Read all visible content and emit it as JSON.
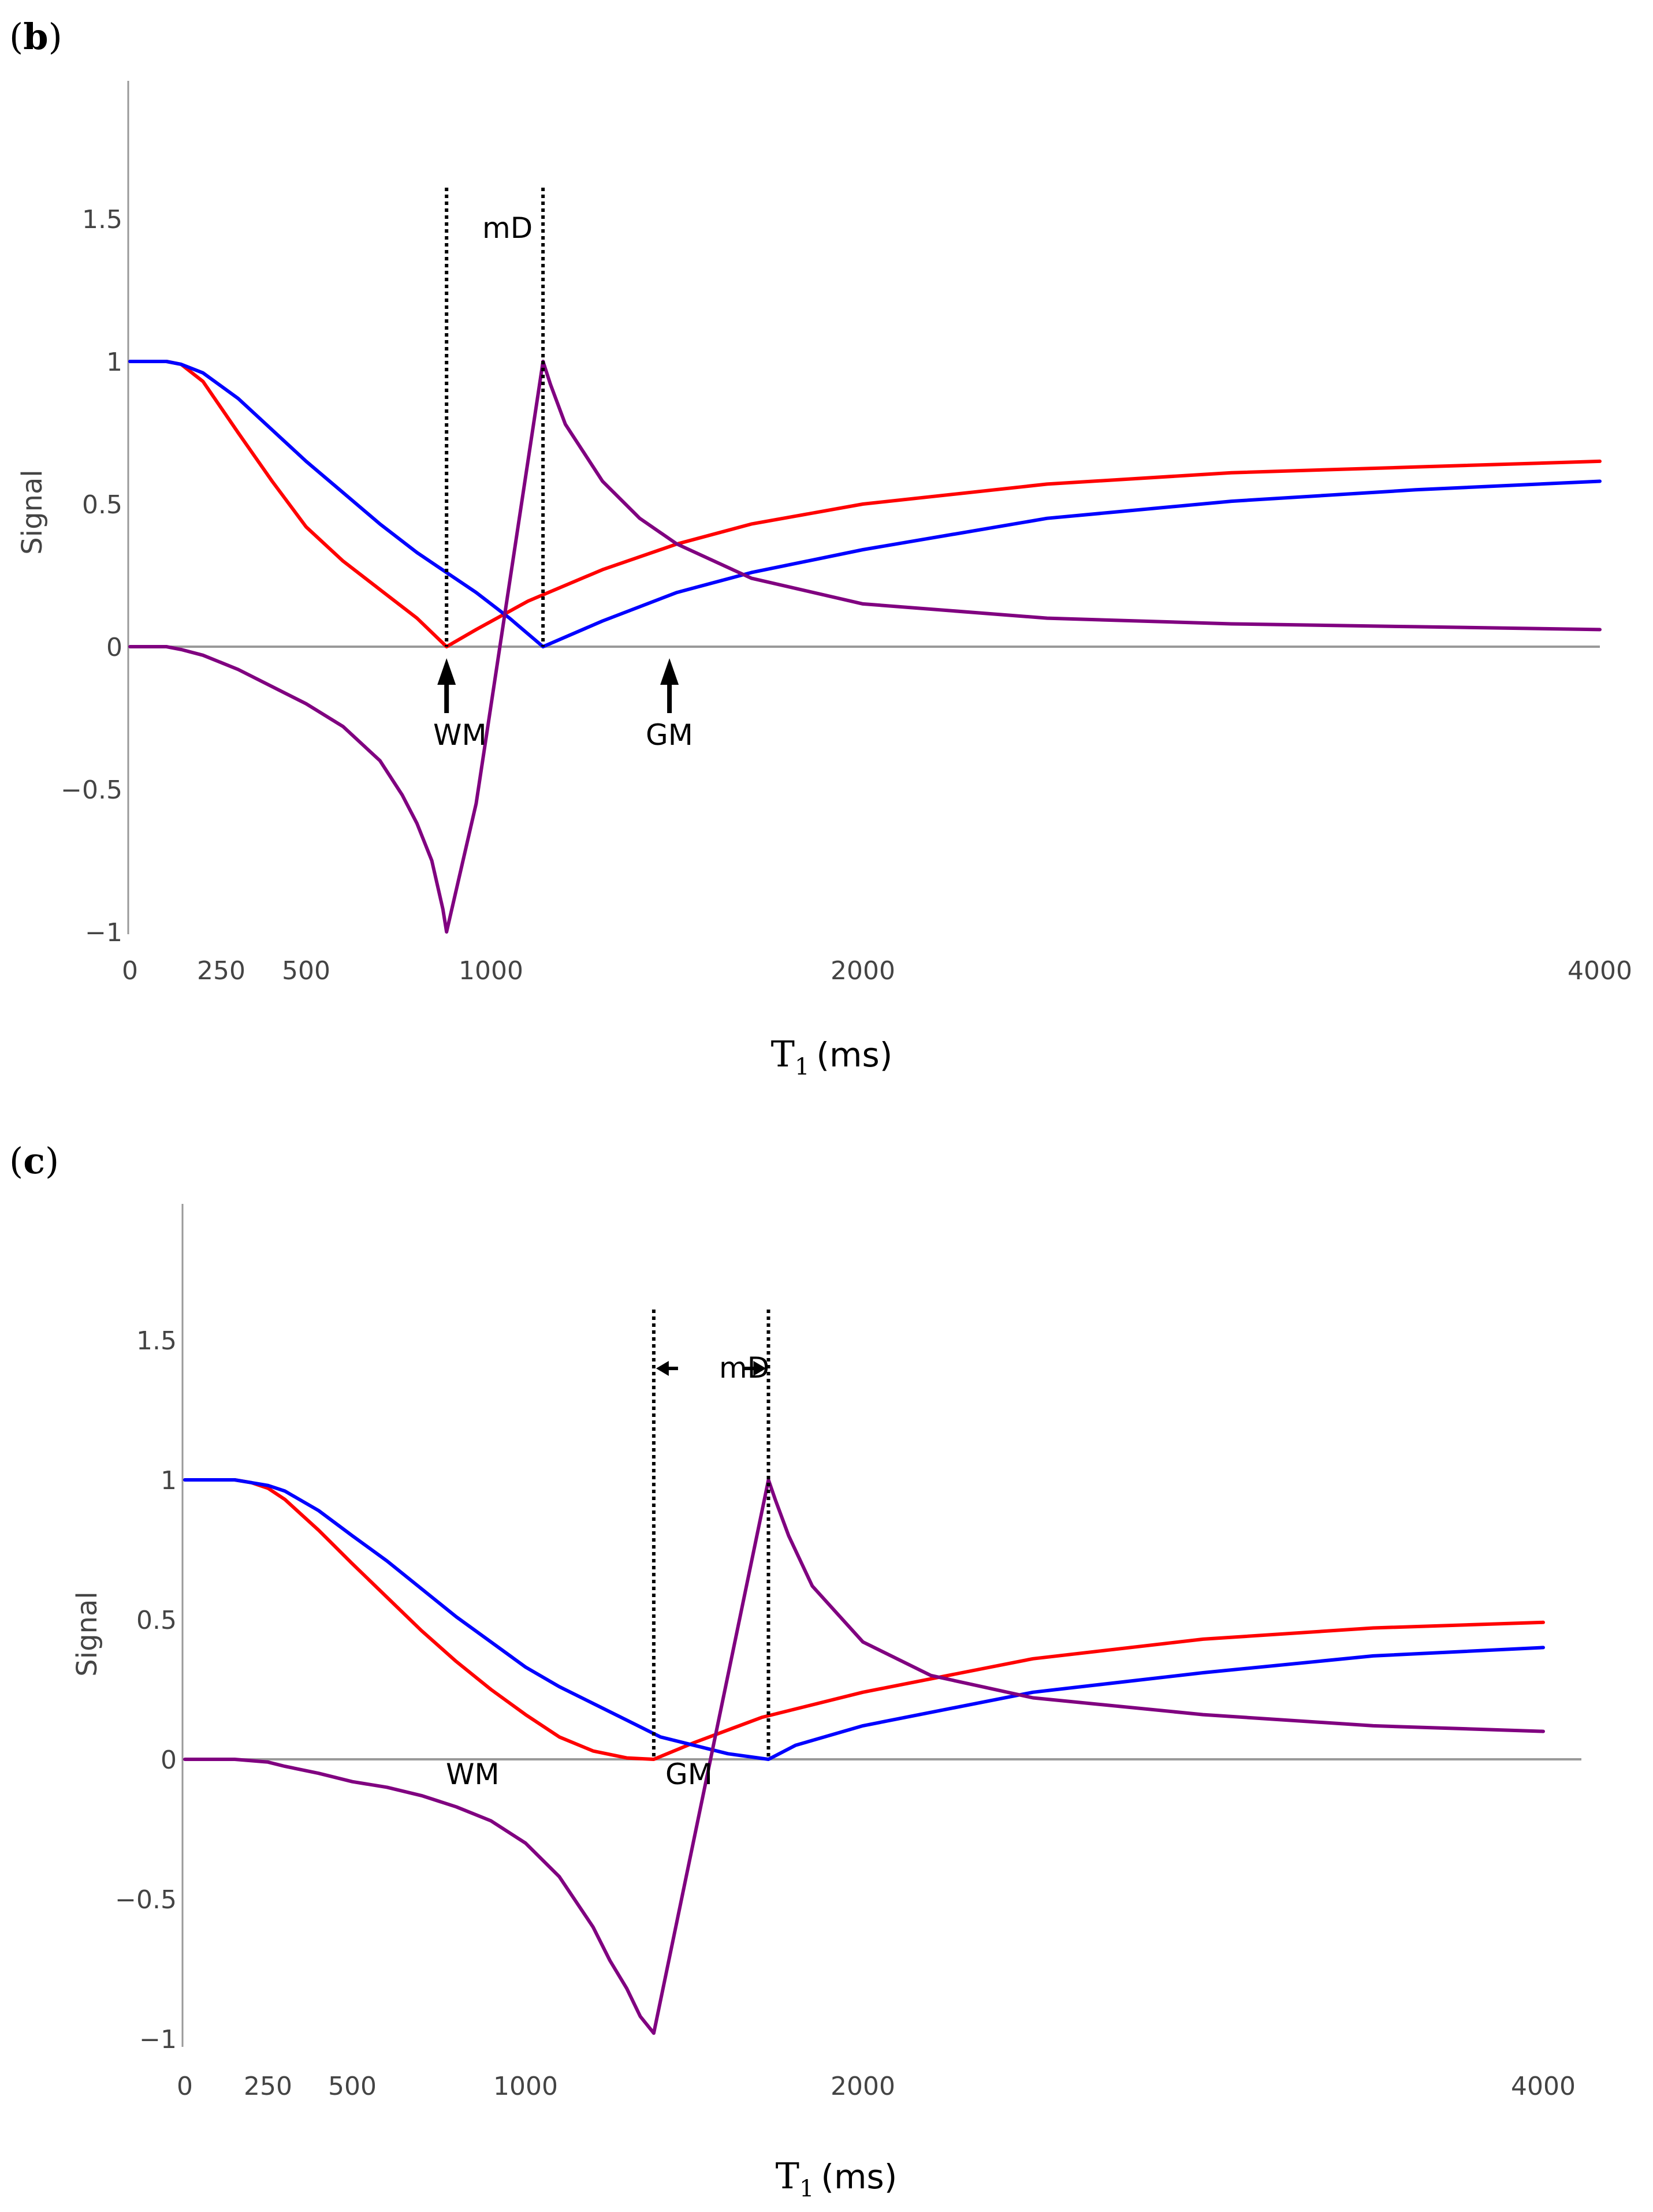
{
  "chart_data": [
    {
      "panel_label": "b",
      "type": "line",
      "xlabel_base": "T",
      "xlabel_sub": "1",
      "xlabel_unit": "(ms)",
      "ylabel": "Signal",
      "x_ticks": [
        0,
        250,
        500,
        1000,
        2000,
        4000
      ],
      "x_tick_labels": [
        "0",
        "250",
        "500",
        "1000",
        "2000",
        "4000"
      ],
      "y_ticks": [
        1.5,
        1,
        0.5,
        0,
        -0.5,
        -1
      ],
      "y_tick_labels": [
        "1.5",
        "1",
        "0.5",
        "0",
        "−0.5",
        "−1"
      ],
      "ylim": [
        -1,
        1.95
      ],
      "grid": false,
      "colors": {
        "red": "#ff0000",
        "blue": "#0000ff",
        "purple": "#800080",
        "axis": "#999999"
      },
      "series": [
        {
          "name": "red",
          "color": "#ff0000",
          "x": [
            0,
            100,
            140,
            200,
            300,
            400,
            500,
            600,
            700,
            800,
            880,
            960,
            1100,
            1300,
            1500,
            1700,
            2000,
            2500,
            3000,
            3500,
            4000
          ],
          "y": [
            1,
            1,
            0.99,
            0.93,
            0.75,
            0.58,
            0.42,
            0.3,
            0.2,
            0.1,
            0.0,
            0.06,
            0.16,
            0.27,
            0.36,
            0.43,
            0.5,
            0.57,
            0.61,
            0.63,
            0.65
          ]
        },
        {
          "name": "blue",
          "color": "#0000ff",
          "x": [
            0,
            100,
            140,
            200,
            300,
            400,
            500,
            600,
            700,
            800,
            880,
            960,
            1050,
            1140,
            1300,
            1500,
            1700,
            2000,
            2500,
            3000,
            3500,
            4000
          ],
          "y": [
            1,
            1,
            0.99,
            0.96,
            0.87,
            0.76,
            0.65,
            0.54,
            0.43,
            0.33,
            0.26,
            0.19,
            0.1,
            0.0,
            0.09,
            0.19,
            0.26,
            0.34,
            0.45,
            0.51,
            0.55,
            0.58
          ]
        },
        {
          "name": "purple",
          "color": "#800080",
          "x": [
            0,
            100,
            140,
            200,
            300,
            400,
            500,
            600,
            700,
            760,
            800,
            840,
            870,
            880,
            960,
            1140,
            1160,
            1200,
            1300,
            1400,
            1500,
            1700,
            2000,
            2500,
            3000,
            3500,
            4000
          ],
          "y": [
            0,
            0,
            -0.01,
            -0.03,
            -0.08,
            -0.14,
            -0.2,
            -0.28,
            -0.4,
            -0.52,
            -0.62,
            -0.75,
            -0.92,
            -1,
            -0.55,
            1,
            0.92,
            0.78,
            0.58,
            0.45,
            0.36,
            0.24,
            0.15,
            0.1,
            0.08,
            0.07,
            0.06
          ]
        }
      ],
      "vlines": [
        880,
        1140
      ],
      "annotations": {
        "md": "mD",
        "wm": "WM",
        "gm": "GM",
        "wm_x": 880,
        "gm_x": 1480
      }
    },
    {
      "panel_label": "c",
      "type": "line",
      "xlabel_base": "T",
      "xlabel_sub": "1",
      "xlabel_unit": "(ms)",
      "ylabel": "Signal",
      "x_ticks": [
        0,
        250,
        500,
        1000,
        2000,
        4000
      ],
      "x_tick_labels": [
        "0",
        "250",
        "500",
        "1000",
        "2000",
        "4000"
      ],
      "y_ticks": [
        1.5,
        1,
        0.5,
        0,
        -0.5,
        -1
      ],
      "y_tick_labels": [
        "1.5",
        "1",
        "0.5",
        "0",
        "−0.5",
        "−1"
      ],
      "ylim": [
        -1,
        1.95
      ],
      "grid": false,
      "colors": {
        "red": "#ff0000",
        "blue": "#0000ff",
        "purple": "#800080",
        "axis": "#999999"
      },
      "series": [
        {
          "name": "red",
          "color": "#ff0000",
          "x": [
            0,
            150,
            200,
            250,
            300,
            400,
            500,
            600,
            700,
            800,
            900,
            1000,
            1100,
            1200,
            1300,
            1380,
            1500,
            1700,
            2000,
            2500,
            3000,
            3500,
            4000
          ],
          "y": [
            1,
            1,
            0.99,
            0.97,
            0.93,
            0.82,
            0.7,
            0.58,
            0.46,
            0.35,
            0.25,
            0.16,
            0.08,
            0.03,
            0.005,
            0.0,
            0.06,
            0.15,
            0.24,
            0.36,
            0.43,
            0.47,
            0.49
          ]
        },
        {
          "name": "blue",
          "color": "#0000ff",
          "x": [
            0,
            150,
            200,
            250,
            300,
            400,
            500,
            600,
            700,
            800,
            900,
            1000,
            1100,
            1200,
            1300,
            1400,
            1500,
            1600,
            1720,
            1800,
            2000,
            2500,
            3000,
            3500,
            4000
          ],
          "y": [
            1,
            1,
            0.99,
            0.98,
            0.96,
            0.89,
            0.8,
            0.71,
            0.61,
            0.51,
            0.42,
            0.33,
            0.26,
            0.2,
            0.14,
            0.08,
            0.05,
            0.02,
            0.0,
            0.05,
            0.12,
            0.24,
            0.31,
            0.37,
            0.4
          ]
        },
        {
          "name": "purple",
          "color": "#800080",
          "x": [
            0,
            150,
            200,
            250,
            300,
            400,
            500,
            600,
            700,
            800,
            900,
            1000,
            1100,
            1200,
            1250,
            1300,
            1340,
            1380,
            1720,
            1740,
            1780,
            1850,
            2000,
            2200,
            2500,
            3000,
            3500,
            4000
          ],
          "y": [
            0,
            0,
            -0.005,
            -0.01,
            -0.025,
            -0.05,
            -0.08,
            -0.1,
            -0.13,
            -0.17,
            -0.22,
            -0.3,
            -0.42,
            -0.6,
            -0.72,
            -0.82,
            -0.92,
            -0.98,
            1,
            0.93,
            0.8,
            0.62,
            0.42,
            0.3,
            0.22,
            0.16,
            0.12,
            0.1
          ]
        }
      ],
      "vlines": [
        1380,
        1720
      ],
      "annotations": {
        "md": "mD",
        "wm": "WM",
        "gm": "GM",
        "wm_x": 750,
        "gm_x": 1380
      }
    }
  ]
}
